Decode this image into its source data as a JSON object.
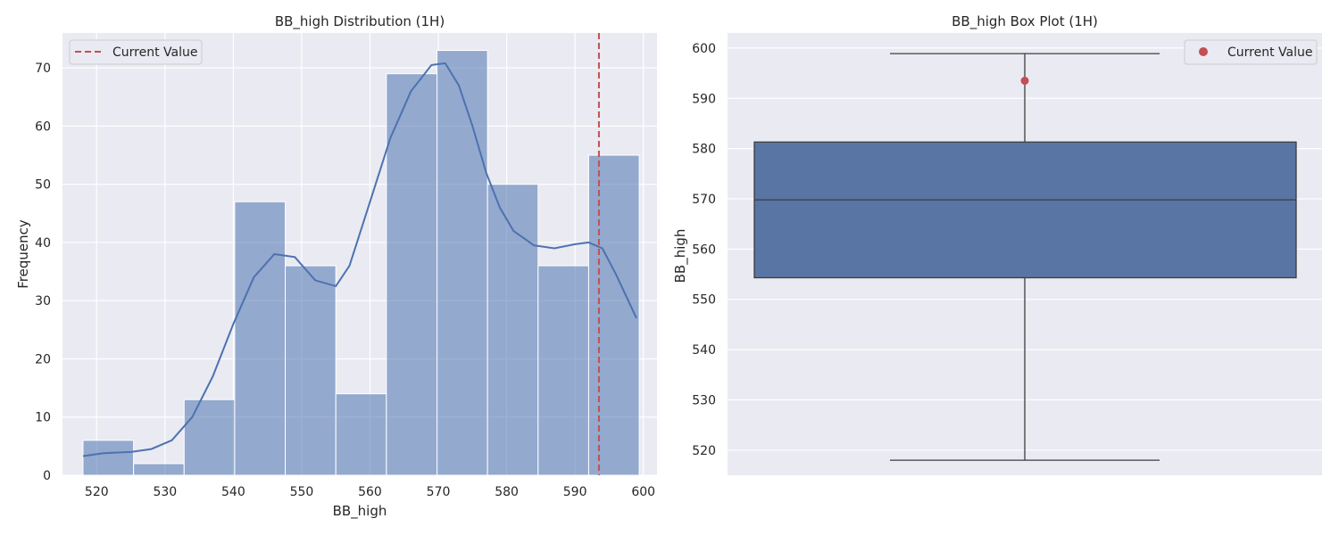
{
  "chart_data": [
    {
      "type": "bar",
      "subtype": "histogram-with-kde",
      "title": "BB_high Distribution (1H)",
      "xlabel": "BB_high",
      "ylabel": "Frequency",
      "xlim": [
        515,
        602
      ],
      "ylim": [
        0,
        76
      ],
      "xticks": [
        520,
        530,
        540,
        550,
        560,
        570,
        580,
        590,
        600
      ],
      "yticks": [
        0,
        10,
        20,
        30,
        40,
        50,
        60,
        70
      ],
      "bins": [
        {
          "start": 518.0,
          "end": 525.4,
          "count": 6
        },
        {
          "start": 525.4,
          "end": 532.8,
          "count": 2
        },
        {
          "start": 532.8,
          "end": 540.2,
          "count": 13
        },
        {
          "start": 540.2,
          "end": 547.6,
          "count": 47
        },
        {
          "start": 547.6,
          "end": 555.0,
          "count": 36
        },
        {
          "start": 555.0,
          "end": 562.4,
          "count": 14
        },
        {
          "start": 562.4,
          "end": 569.8,
          "count": 69
        },
        {
          "start": 569.8,
          "end": 577.2,
          "count": 73
        },
        {
          "start": 577.2,
          "end": 584.6,
          "count": 50
        },
        {
          "start": 584.6,
          "end": 592.0,
          "count": 36
        },
        {
          "start": 592.0,
          "end": 599.4,
          "count": 55
        }
      ],
      "kde": {
        "x": [
          518,
          521,
          525,
          528,
          531,
          534,
          537,
          540,
          543,
          546,
          549,
          552,
          555,
          557,
          560,
          563,
          566,
          569,
          571,
          573,
          575,
          577,
          579,
          581,
          584,
          587,
          590,
          592,
          594,
          596,
          599
        ],
        "y": [
          3.3,
          3.8,
          4.0,
          4.5,
          6.0,
          10.0,
          17.0,
          26.0,
          34.0,
          38.0,
          37.5,
          33.5,
          32.5,
          36.0,
          47.0,
          58.0,
          66.0,
          70.5,
          70.8,
          67.0,
          60.0,
          52.0,
          46.0,
          42.0,
          39.5,
          39.0,
          39.7,
          40.0,
          39.0,
          34.5,
          27.0
        ]
      },
      "current_value": 593.5,
      "legend": {
        "label": "Current Value",
        "placement": "upper left"
      },
      "grid": true,
      "colors": {
        "bars": "#4c72b0",
        "kde": "#4c72b0",
        "current": "#c44e52",
        "background": "#eaeaf2"
      }
    },
    {
      "type": "box",
      "title": "BB_high Box Plot (1H)",
      "xlabel": "",
      "ylabel": "BB_high",
      "ylim": [
        515,
        603
      ],
      "yticks": [
        520,
        530,
        540,
        550,
        560,
        570,
        580,
        590,
        600
      ],
      "box": {
        "min": 518.0,
        "q1": 554.3,
        "median": 569.8,
        "q3": 581.3,
        "max": 598.9
      },
      "current_value": 593.5,
      "legend": {
        "label": "Current Value",
        "placement": "upper right"
      },
      "grid": true,
      "colors": {
        "box": "#5975a4",
        "current": "#c44e52",
        "background": "#eaeaf2"
      }
    }
  ]
}
